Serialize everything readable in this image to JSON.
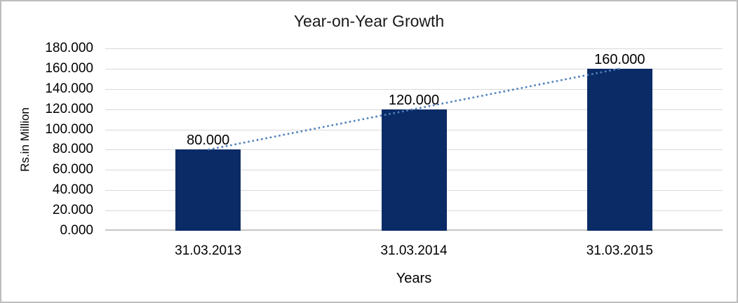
{
  "chart_data": {
    "type": "bar",
    "title": "Year-on-Year Growth",
    "xlabel": "Years",
    "ylabel": "Rs.in Million",
    "categories": [
      "31.03.2013",
      "31.03.2014",
      "31.03.2015"
    ],
    "values": [
      80,
      120,
      160
    ],
    "value_labels": [
      "80.000",
      "120.000",
      "160.000"
    ],
    "y_ticks": [
      "0.000",
      "20.000",
      "40.000",
      "60.000",
      "80.000",
      "100.000",
      "120.000",
      "140.000",
      "160.000",
      "180.000"
    ],
    "ylim": [
      0,
      180
    ],
    "grid": true,
    "legend_position": "none",
    "trendline": {
      "type": "linear",
      "style": "dotted"
    },
    "colors": {
      "bar": "#0b2b66",
      "trendline": "#4f81bd",
      "gridline": "#d9d9d9",
      "axis_line": "#c6c6c6",
      "frame_border": "#bdbdbd",
      "text": "#000000"
    }
  }
}
